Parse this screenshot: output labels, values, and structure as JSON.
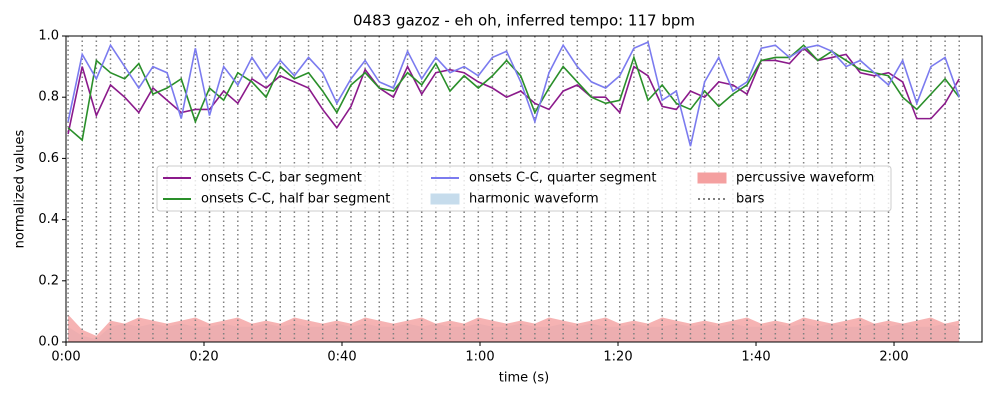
{
  "chart_data": {
    "type": "line",
    "title": "0483 gazoz - eh oh, inferred tempo: 117 bpm",
    "x_label": "time (s)",
    "y_label": "normalized values",
    "xlim": [
      0,
      132.75
    ],
    "ylim": [
      0,
      1
    ],
    "xticks": [
      {
        "value": 0,
        "label": "0:00"
      },
      {
        "value": 20,
        "label": "0:20"
      },
      {
        "value": 40,
        "label": "0:40"
      },
      {
        "value": 60,
        "label": "1:00"
      },
      {
        "value": 80,
        "label": "1:20"
      },
      {
        "value": 100,
        "label": "1:40"
      },
      {
        "value": 120,
        "label": "2:00"
      }
    ],
    "yticks": [
      {
        "value": 0,
        "label": "0.0"
      },
      0.2,
      0.4,
      0.6,
      0.8,
      {
        "value": 1,
        "label": "1.0"
      }
    ],
    "x": [
      0.3,
      2.35,
      4.4,
      6.45,
      8.5,
      10.55,
      12.6,
      14.65,
      16.7,
      18.75,
      20.8,
      22.85,
      24.9,
      26.95,
      29.0,
      31.05,
      33.1,
      35.15,
      37.2,
      39.25,
      41.3,
      43.35,
      45.4,
      47.45,
      49.5,
      51.55,
      53.6,
      55.65,
      57.7,
      59.75,
      61.8,
      63.85,
      65.9,
      67.95,
      70.0,
      72.05,
      74.1,
      76.15,
      78.2,
      80.25,
      82.3,
      84.35,
      86.4,
      88.45,
      90.5,
      92.55,
      94.6,
      96.65,
      98.7,
      100.75,
      102.8,
      104.85,
      106.9,
      108.95,
      111.0,
      113.05,
      115.1,
      117.15,
      119.2,
      121.25,
      123.3,
      125.35,
      127.4,
      129.45
    ],
    "series": [
      {
        "name": "onsets C-C, bar segment",
        "color": "#8b1a8b",
        "values": [
          0.68,
          0.9,
          0.74,
          0.84,
          0.8,
          0.75,
          0.83,
          0.79,
          0.75,
          0.76,
          0.76,
          0.82,
          0.78,
          0.86,
          0.83,
          0.87,
          0.85,
          0.83,
          0.76,
          0.7,
          0.77,
          0.89,
          0.83,
          0.8,
          0.9,
          0.81,
          0.88,
          0.89,
          0.88,
          0.85,
          0.83,
          0.8,
          0.82,
          0.78,
          0.76,
          0.82,
          0.84,
          0.8,
          0.8,
          0.75,
          0.9,
          0.87,
          0.77,
          0.76,
          0.82,
          0.8,
          0.85,
          0.84,
          0.81,
          0.92,
          0.92,
          0.91,
          0.96,
          0.92,
          0.93,
          0.94,
          0.88,
          0.87,
          0.88,
          0.85,
          0.73,
          0.73,
          0.78,
          0.86
        ]
      },
      {
        "name": "onsets C-C, half bar segment",
        "color": "#2a8f2a",
        "values": [
          0.7,
          0.66,
          0.92,
          0.88,
          0.86,
          0.91,
          0.81,
          0.83,
          0.86,
          0.72,
          0.83,
          0.79,
          0.88,
          0.85,
          0.8,
          0.9,
          0.86,
          0.88,
          0.82,
          0.75,
          0.84,
          0.88,
          0.83,
          0.82,
          0.88,
          0.84,
          0.91,
          0.82,
          0.87,
          0.83,
          0.87,
          0.92,
          0.87,
          0.75,
          0.83,
          0.9,
          0.85,
          0.8,
          0.78,
          0.79,
          0.93,
          0.79,
          0.84,
          0.78,
          0.76,
          0.82,
          0.77,
          0.81,
          0.84,
          0.92,
          0.93,
          0.93,
          0.97,
          0.92,
          0.95,
          0.92,
          0.89,
          0.88,
          0.87,
          0.8,
          0.76,
          0.81,
          0.86,
          0.8
        ]
      },
      {
        "name": "onsets C-C, quarter segment",
        "color": "#7b7bef",
        "values": [
          0.72,
          0.94,
          0.86,
          0.97,
          0.9,
          0.83,
          0.9,
          0.88,
          0.73,
          0.96,
          0.74,
          0.9,
          0.84,
          0.93,
          0.86,
          0.92,
          0.87,
          0.93,
          0.88,
          0.78,
          0.86,
          0.92,
          0.85,
          0.83,
          0.95,
          0.86,
          0.93,
          0.88,
          0.9,
          0.87,
          0.93,
          0.95,
          0.85,
          0.72,
          0.88,
          0.97,
          0.9,
          0.85,
          0.83,
          0.87,
          0.96,
          0.98,
          0.79,
          0.82,
          0.64,
          0.85,
          0.93,
          0.82,
          0.85,
          0.96,
          0.97,
          0.93,
          0.96,
          0.97,
          0.95,
          0.9,
          0.92,
          0.88,
          0.84,
          0.92,
          0.78,
          0.9,
          0.93,
          0.8
        ]
      }
    ],
    "areas": [
      {
        "name": "harmonic waveform",
        "color": "#c6dcec",
        "values": [
          0.05,
          0.02,
          0.01,
          0.05,
          0.06,
          0.05,
          0.06,
          0.05,
          0.06,
          0.05,
          0.05,
          0.06,
          0.05,
          0.05,
          0.06,
          0.05,
          0.06,
          0.05,
          0.05,
          0.06,
          0.05,
          0.06,
          0.05,
          0.05,
          0.06,
          0.05,
          0.06,
          0.05,
          0.05,
          0.06,
          0.05,
          0.05,
          0.06,
          0.05,
          0.05,
          0.06,
          0.05,
          0.06,
          0.05,
          0.05,
          0.06,
          0.05,
          0.05,
          0.06,
          0.05,
          0.06,
          0.05,
          0.06,
          0.05,
          0.05,
          0.06,
          0.05,
          0.06,
          0.05,
          0.06,
          0.05,
          0.05,
          0.06,
          0.05,
          0.06,
          0.05,
          0.05,
          0.06,
          0.05
        ]
      },
      {
        "name": "percussive waveform",
        "color": "#f4a0a0",
        "values": [
          0.09,
          0.04,
          0.02,
          0.07,
          0.06,
          0.08,
          0.07,
          0.06,
          0.07,
          0.08,
          0.06,
          0.07,
          0.08,
          0.06,
          0.07,
          0.06,
          0.08,
          0.07,
          0.06,
          0.07,
          0.06,
          0.08,
          0.07,
          0.06,
          0.07,
          0.08,
          0.06,
          0.07,
          0.06,
          0.08,
          0.07,
          0.06,
          0.07,
          0.06,
          0.08,
          0.07,
          0.06,
          0.07,
          0.08,
          0.06,
          0.07,
          0.06,
          0.08,
          0.07,
          0.06,
          0.07,
          0.06,
          0.07,
          0.08,
          0.06,
          0.07,
          0.06,
          0.08,
          0.07,
          0.06,
          0.07,
          0.08,
          0.06,
          0.07,
          0.06,
          0.07,
          0.08,
          0.06,
          0.07
        ]
      }
    ],
    "bars": {
      "name": "bars",
      "color": "#808080",
      "x": [
        0.3,
        2.35,
        4.4,
        6.45,
        8.5,
        10.55,
        12.6,
        14.65,
        16.7,
        18.75,
        20.8,
        22.85,
        24.9,
        26.95,
        29.0,
        31.05,
        33.1,
        35.15,
        37.2,
        39.25,
        41.3,
        43.35,
        45.4,
        47.45,
        49.5,
        51.55,
        53.6,
        55.65,
        57.7,
        59.75,
        61.8,
        63.85,
        65.9,
        67.95,
        70.0,
        72.05,
        74.1,
        76.15,
        78.2,
        80.25,
        82.3,
        84.35,
        86.4,
        88.45,
        90.5,
        92.55,
        94.6,
        96.65,
        98.7,
        100.75,
        102.8,
        104.85,
        106.9,
        108.95,
        111.0,
        113.05,
        115.1,
        117.15,
        119.2,
        121.25,
        123.3,
        125.35,
        127.4,
        129.45
      ]
    }
  }
}
